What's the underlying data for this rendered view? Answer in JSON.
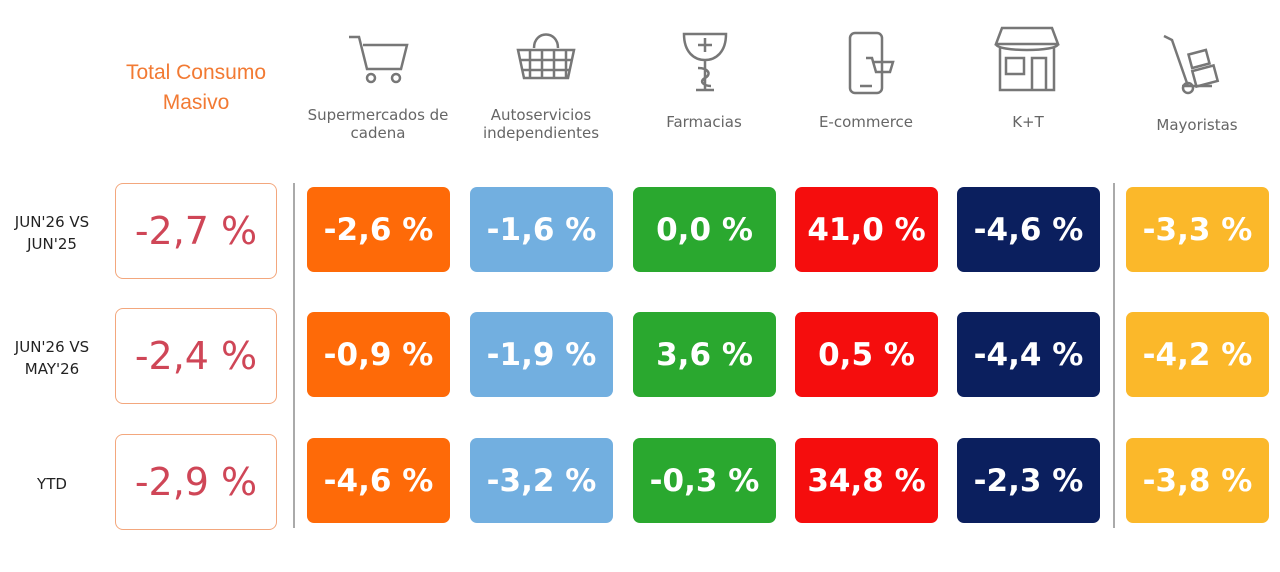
{
  "header": {
    "title": "Total Consumo Masivo"
  },
  "columns": [
    {
      "label": "Supermercados de cadena",
      "color": "#fe6a08"
    },
    {
      "label": "Autoservicios independientes",
      "color": "#72afe0"
    },
    {
      "label": "Farmacias",
      "color": "#2aa82f"
    },
    {
      "label": "E-commerce",
      "color": "#f50d0d"
    },
    {
      "label": "K+T",
      "color": "#0b1f5e"
    },
    {
      "label": "Mayoristas",
      "color": "#fbb82a"
    }
  ],
  "rows": [
    {
      "label": "JUN'26 VS JUN'25",
      "total": "-2,7 %",
      "values": [
        "-2,6 %",
        "-1,6 %",
        "0,0 %",
        "41,0 %",
        "-4,6 %",
        "-3,3 %"
      ]
    },
    {
      "label": "JUN'26 VS MAY'26",
      "total": "-2,4 %",
      "values": [
        "-0,9 %",
        "-1,9 %",
        "3,6 %",
        "0,5 %",
        "-4,4 %",
        "-4,2 %"
      ]
    },
    {
      "label": "YTD",
      "total": "-2,9 %",
      "values": [
        "-4,6 %",
        "-3,2 %",
        "-0,3 %",
        "34,8 %",
        "-2,3 %",
        "-3,8 %"
      ]
    }
  ]
}
